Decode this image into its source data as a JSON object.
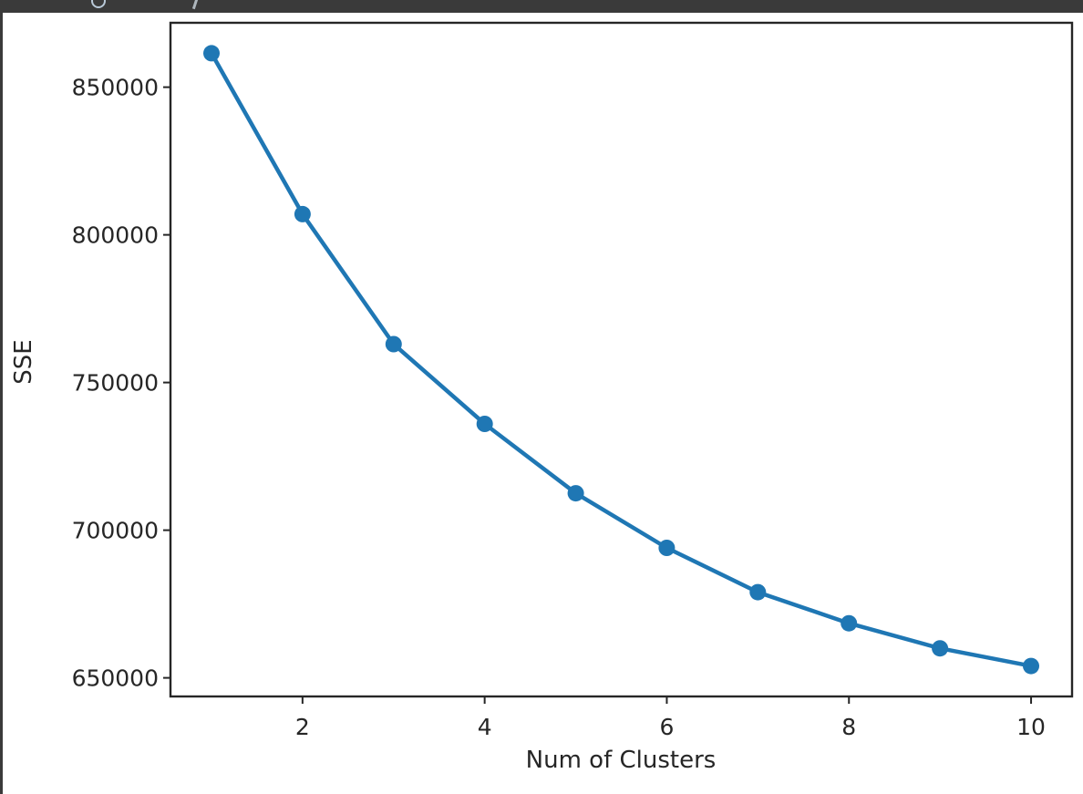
{
  "window": {
    "titlebar_color": "#3a3a3a",
    "canvas_color": "#ffffff"
  },
  "chart_data": {
    "type": "line",
    "title": "",
    "xlabel": "Num of Clusters",
    "ylabel": "SSE",
    "x": [
      1,
      2,
      3,
      4,
      5,
      6,
      7,
      8,
      9,
      10
    ],
    "series": [
      {
        "name": "SSE",
        "values": [
          861500,
          807000,
          763000,
          736000,
          712500,
          694000,
          679000,
          668500,
          660000,
          654000
        ]
      }
    ],
    "xlim": [
      0.55,
      10.45
    ],
    "ylim": [
      643700,
      871800
    ],
    "xticks": [
      2,
      4,
      6,
      8,
      10
    ],
    "xtick_labels": [
      "2",
      "4",
      "6",
      "8",
      "10"
    ],
    "yticks": [
      650000,
      700000,
      750000,
      800000,
      850000
    ],
    "ytick_labels": [
      "650000",
      "700000",
      "750000",
      "800000",
      "850000"
    ],
    "grid": false,
    "legend": null,
    "line_color": "#1f77b4",
    "marker": "circle",
    "axis_color": "#262626"
  }
}
